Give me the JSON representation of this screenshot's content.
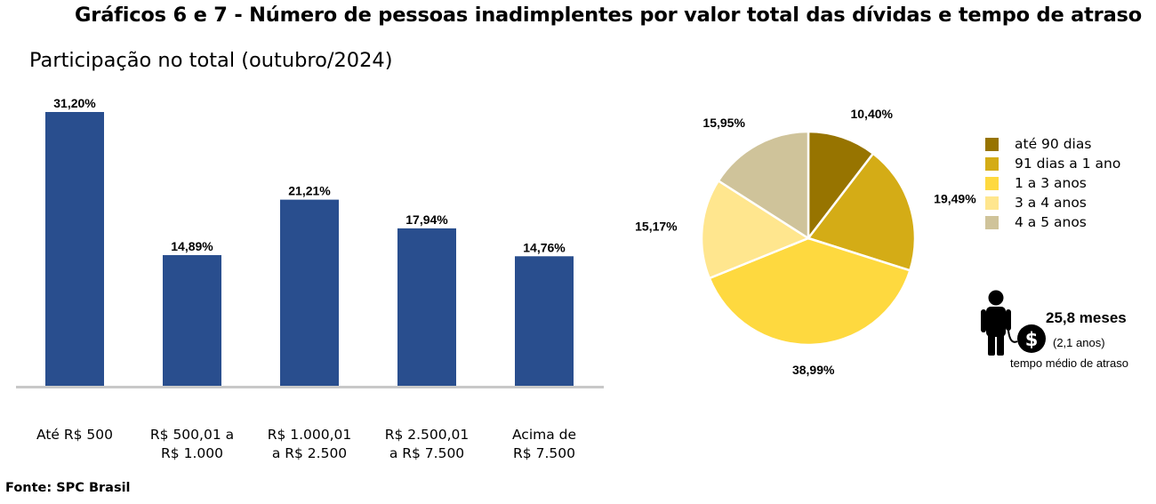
{
  "title": "Gráficos 6 e 7 - Número de pessoas inadimplentes por valor total das dívidas e tempo de atraso",
  "subtitle": "Participação no total (outubro/2024)",
  "source": "Fonte: SPC Brasil",
  "chart_data": [
    {
      "type": "bar",
      "categories": [
        [
          "Até R$ 500"
        ],
        [
          "R$ 500,01 a",
          "R$ 1.000"
        ],
        [
          "R$ 1.000,01",
          "a R$ 2.500"
        ],
        [
          "R$ 2.500,01",
          "a R$ 7.500"
        ],
        [
          "Acima de",
          "R$ 7.500"
        ]
      ],
      "values": [
        31.2,
        14.89,
        21.21,
        17.94,
        14.76
      ],
      "data_labels": [
        "31,20%",
        "14,89%",
        "21,21%",
        "17,94%",
        "14,76%"
      ],
      "ylim": [
        0,
        31.2
      ],
      "bar_color": "#294e8e",
      "axis_color": "#c8c8c8",
      "grid": false
    },
    {
      "type": "pie",
      "labels": [
        "até 90 dias",
        "91 dias a 1 ano",
        "1 a 3 anos",
        "3 a 4 anos",
        "4 a 5 anos"
      ],
      "values": [
        10.4,
        19.49,
        38.99,
        15.17,
        15.95
      ],
      "data_labels": [
        "10,40%",
        "19,49%",
        "38,99%",
        "15,17%",
        "15,95%"
      ],
      "colors": [
        "#977400",
        "#d4ac16",
        "#fed93f",
        "#ffe68e",
        "#cfc39a"
      ],
      "legend_position": "right"
    }
  ],
  "average_delay": {
    "value": "25,8 meses",
    "years": "(2,1 anos)",
    "label": "tempo médio de atraso",
    "icon": "person-with-money-bag-icon"
  }
}
